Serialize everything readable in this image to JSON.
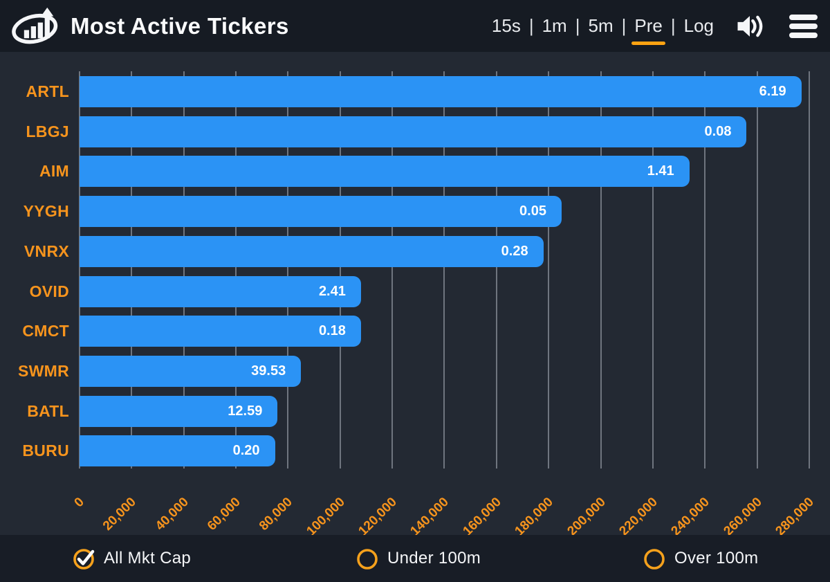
{
  "header": {
    "title": "Most Active Tickers",
    "separator": "|",
    "intervals": [
      {
        "label": "15s",
        "active": false
      },
      {
        "label": "1m",
        "active": false
      },
      {
        "label": "5m",
        "active": false
      },
      {
        "label": "Pre",
        "active": true
      },
      {
        "label": "Log",
        "active": false
      }
    ]
  },
  "chart_data": {
    "type": "bar",
    "orientation": "horizontal",
    "title": "Most Active Tickers",
    "categories": [
      "ARTL",
      "LBGJ",
      "AIM",
      "YYGH",
      "VNRX",
      "OVID",
      "CMCT",
      "SWMR",
      "BATL",
      "BURU"
    ],
    "series": [
      {
        "name": "volume",
        "values": [
          277000,
          256000,
          234000,
          185000,
          178000,
          108000,
          108000,
          85000,
          76000,
          75000
        ]
      },
      {
        "name": "price_label",
        "values": [
          "6.19",
          "0.08",
          "1.41",
          "0.05",
          "0.28",
          "2.41",
          "0.18",
          "39.53",
          "12.59",
          "0.20"
        ]
      }
    ],
    "xlim": [
      0,
      288000
    ],
    "x_tick_step": 20000,
    "x_tick_labels": [
      "0",
      "20,000",
      "40,000",
      "60,000",
      "80,000",
      "100,000",
      "120,000",
      "140,000",
      "160,000",
      "180,000",
      "200,000",
      "220,000",
      "240,000",
      "260,000",
      "280,000"
    ],
    "grid": true,
    "legend": "none",
    "bar_color": "#2b93f5",
    "category_label_color": "#f7941d",
    "value_label_color": "#ffffff"
  },
  "filters": [
    {
      "label": "All Mkt Cap",
      "checked": true
    },
    {
      "label": "Under 100m",
      "checked": false
    },
    {
      "label": "Over 100m",
      "checked": false
    }
  ],
  "colors": {
    "header_bg": "#161b23",
    "chart_bg": "#232933",
    "footer_bg": "#181d26",
    "accent_orange": "#f7941d",
    "active_underline": "#ffa312",
    "bar_blue": "#2b93f5",
    "grid_line": "#6f757f",
    "text_white": "#f5f6f8"
  }
}
